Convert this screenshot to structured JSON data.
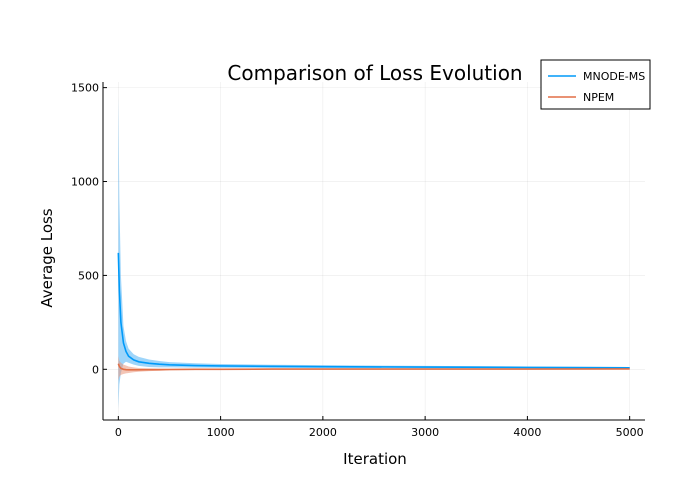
{
  "chart_data": {
    "type": "line",
    "title": "Comparison of Loss Evolution",
    "xlabel": "Iteration",
    "ylabel": "Average Loss",
    "xlim": [
      -150,
      5150
    ],
    "ylim": [
      -270,
      1530
    ],
    "xticks": [
      0,
      1000,
      2000,
      3000,
      4000,
      5000
    ],
    "yticks": [
      0,
      500,
      1000,
      1500
    ],
    "grid": true,
    "legend_position": "top-right",
    "series": [
      {
        "name": "MNODE-MS",
        "color": "#009af9",
        "band_color": "#4fb3f5",
        "x": [
          0,
          10,
          25,
          50,
          75,
          100,
          150,
          200,
          300,
          400,
          500,
          750,
          1000,
          1500,
          2000,
          3000,
          4000,
          5000
        ],
        "y": [
          620,
          420,
          250,
          140,
          95,
          70,
          50,
          40,
          32,
          27,
          24,
          20,
          18,
          16,
          14,
          12,
          10,
          8
        ],
        "y_upper": [
          1450,
          900,
          500,
          230,
          150,
          110,
          80,
          66,
          52,
          44,
          38,
          32,
          28,
          24,
          22,
          18,
          15,
          12
        ],
        "y_lower": [
          -210,
          -80,
          -20,
          30,
          40,
          35,
          25,
          18,
          12,
          10,
          10,
          9,
          8,
          7,
          6,
          5,
          4,
          3
        ]
      },
      {
        "name": "NPEM",
        "color": "#e26f46",
        "band_color": "#e9967a",
        "x": [
          0,
          10,
          25,
          50,
          75,
          100,
          150,
          200,
          300,
          400,
          500,
          750,
          1000,
          1500,
          2000,
          3000,
          4000,
          5000
        ],
        "y": [
          30,
          15,
          5,
          0,
          -2,
          -3,
          -3,
          -3,
          -2,
          -2,
          -1,
          0,
          0,
          1,
          1,
          1,
          1,
          2
        ],
        "y_upper": [
          70,
          45,
          35,
          25,
          20,
          15,
          10,
          7,
          5,
          4,
          3,
          3,
          3,
          3,
          3,
          3,
          3,
          3
        ],
        "y_lower": [
          -60,
          -40,
          -30,
          -25,
          -22,
          -20,
          -16,
          -13,
          -10,
          -8,
          -6,
          -4,
          -3,
          -2,
          -1,
          -1,
          0,
          0
        ]
      }
    ]
  }
}
